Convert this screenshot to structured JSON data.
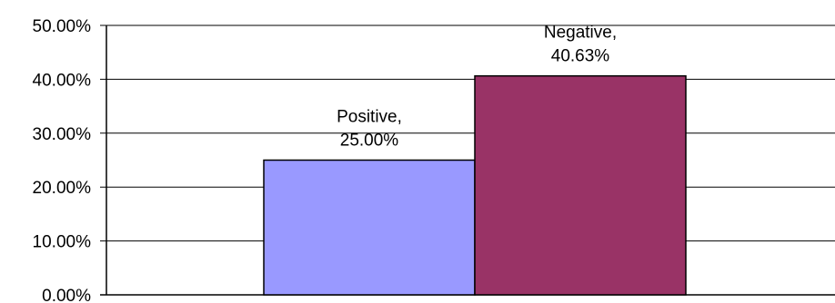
{
  "chart_data": {
    "type": "bar",
    "categories": [
      "Positive",
      "Negative"
    ],
    "values": [
      25.0,
      40.63
    ],
    "data_labels": [
      {
        "line1": "Positive,",
        "line2": "25.00%"
      },
      {
        "line1": "Negative,",
        "line2": "40.63%"
      }
    ],
    "colors": [
      "#9999ff",
      "#993366"
    ],
    "ylim": [
      0,
      50
    ],
    "y_ticks": [
      {
        "value": 0,
        "label": "0.00%"
      },
      {
        "value": 10,
        "label": "10.00%"
      },
      {
        "value": 20,
        "label": "20.00%"
      },
      {
        "value": 30,
        "label": "30.00%"
      },
      {
        "value": 40,
        "label": "40.00%"
      },
      {
        "value": 50,
        "label": "50.00%"
      }
    ],
    "grid": true,
    "legend": "none",
    "title": "",
    "xlabel": "",
    "ylabel": ""
  }
}
